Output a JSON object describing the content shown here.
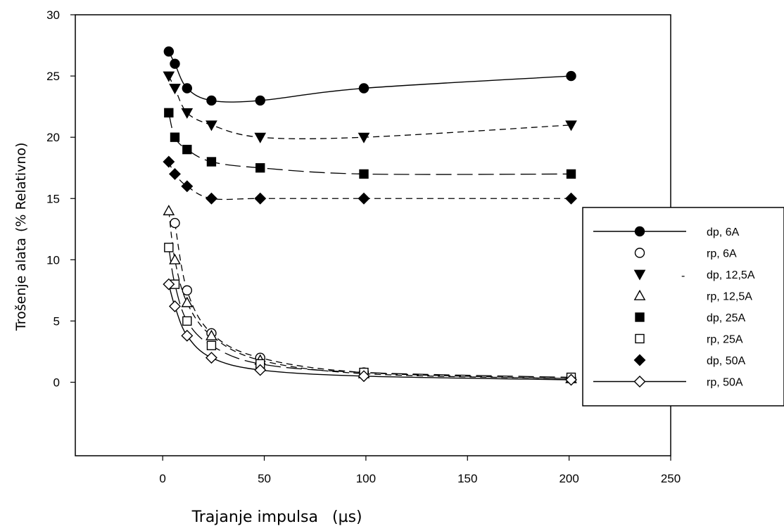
{
  "chart_data": {
    "type": "scatter",
    "title": "",
    "xlabel": "Trajanje impulsa",
    "xlabel_unit": "(µs)",
    "ylabel": "Trošenje alata",
    "ylabel_unit": "(% Relativno)",
    "xlim": [
      -43,
      250
    ],
    "ylim": [
      -6,
      30
    ],
    "x_ticks": [
      "0",
      "50",
      "100",
      "150",
      "200",
      "250"
    ],
    "y_ticks": [
      "0",
      "5",
      "10",
      "15",
      "20",
      "25",
      "30"
    ],
    "grid": false,
    "legend_position": "right",
    "series": [
      {
        "name": "dp, 6A",
        "marker": "circle",
        "filled": true,
        "line": "solid",
        "x": [
          3,
          6,
          12,
          24,
          48,
          99,
          201
        ],
        "y": [
          27,
          26,
          24,
          23,
          23,
          24,
          25
        ]
      },
      {
        "name": "rp, 6A",
        "marker": "circle",
        "filled": false,
        "line": "dash",
        "x": [
          6,
          12,
          24,
          48,
          99,
          201
        ],
        "y": [
          13,
          7.5,
          4,
          2,
          0.8,
          0.3
        ]
      },
      {
        "name": "dp, 12,5A",
        "marker": "triangle-down",
        "filled": true,
        "line": "dash",
        "x": [
          3,
          6,
          12,
          24,
          48,
          99,
          201
        ],
        "y": [
          25,
          24,
          22,
          21,
          20,
          20,
          21
        ]
      },
      {
        "name": "rp, 12,5A",
        "marker": "triangle-up",
        "filled": false,
        "line": "dash",
        "x": [
          3,
          6,
          12,
          24,
          48,
          99,
          201
        ],
        "y": [
          14,
          10,
          6.5,
          3.8,
          1.8,
          0.7,
          0.3
        ]
      },
      {
        "name": "dp, 25A",
        "marker": "square",
        "filled": true,
        "line": "longdash",
        "x": [
          3,
          6,
          12,
          24,
          48,
          99,
          201
        ],
        "y": [
          22,
          20,
          19,
          18,
          17.5,
          17,
          17
        ]
      },
      {
        "name": "rp, 25A",
        "marker": "square",
        "filled": false,
        "line": "longdash",
        "x": [
          3,
          6,
          12,
          24,
          48,
          99,
          201
        ],
        "y": [
          11,
          8,
          5,
          3,
          1.5,
          0.8,
          0.4
        ]
      },
      {
        "name": "dp, 50A",
        "marker": "diamond",
        "filled": true,
        "line": "dash",
        "x": [
          3,
          6,
          12,
          24,
          48,
          99,
          201
        ],
        "y": [
          18,
          17,
          16,
          15,
          15,
          15,
          15
        ]
      },
      {
        "name": "rp, 50A",
        "marker": "diamond",
        "filled": false,
        "line": "solid",
        "x": [
          3,
          6,
          12,
          24,
          48,
          99,
          201
        ],
        "y": [
          8,
          6.2,
          3.8,
          2,
          1,
          0.5,
          0.2
        ]
      }
    ],
    "legend_extra_mark": "-"
  }
}
